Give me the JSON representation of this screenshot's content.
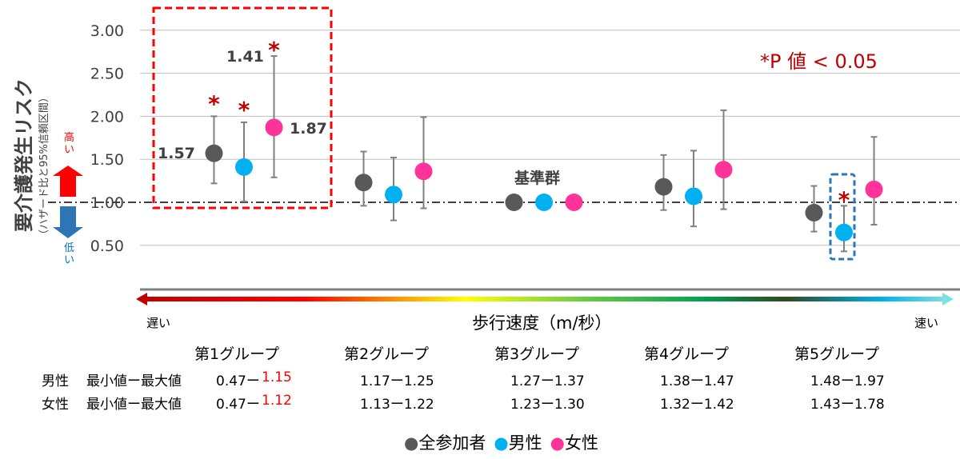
{
  "chart_data": {
    "type": "scatter",
    "ylabel": "要介護発生リスク",
    "ylabel_sub": "（ハザード比と95%信頼区間）",
    "xlabel": "歩行速度（m/秒）",
    "ylim": [
      0.3,
      3.1
    ],
    "yticks": [
      "3.00",
      "2.50",
      "2.00",
      "1.50",
      "1.00",
      "0.50"
    ],
    "ytick_values": [
      3.0,
      2.5,
      2.0,
      1.5,
      1.0,
      0.5
    ],
    "high_label": "高い",
    "low_label": "低い",
    "slow_label": "遅い",
    "fast_label": "速い",
    "reference_label": "基準群",
    "pvalue_note": "*P 値 < 0.05",
    "categories": [
      "第1グループ",
      "第2グループ",
      "第3グループ",
      "第4グループ",
      "第5グループ"
    ],
    "series": [
      {
        "name": "全参加者",
        "color": "#595959",
        "values": [
          1.57,
          1.23,
          1.0,
          1.18,
          0.88
        ],
        "lower": [
          1.22,
          0.96,
          1.0,
          0.91,
          0.66
        ],
        "upper": [
          2.0,
          1.59,
          1.0,
          1.55,
          1.19
        ],
        "significant": [
          true,
          false,
          false,
          false,
          false
        ]
      },
      {
        "name": "男性",
        "color": "#00b0f0",
        "values": [
          1.41,
          1.09,
          1.0,
          1.07,
          0.65
        ],
        "lower": [
          1.01,
          0.79,
          1.0,
          0.72,
          0.43
        ],
        "upper": [
          1.93,
          1.52,
          1.0,
          1.6,
          0.96
        ],
        "significant": [
          true,
          false,
          false,
          false,
          true
        ]
      },
      {
        "name": "女性",
        "color": "#ff3399",
        "values": [
          1.87,
          1.36,
          1.0,
          1.38,
          1.15
        ],
        "lower": [
          1.29,
          0.93,
          1.0,
          0.92,
          0.74
        ],
        "upper": [
          2.7,
          1.99,
          1.0,
          2.07,
          1.76
        ],
        "significant": [
          true,
          false,
          false,
          false,
          false
        ]
      }
    ],
    "data_labels": [
      "1.57",
      "1.41",
      "1.87"
    ],
    "legend": [
      "全参加者",
      "男性",
      "女性"
    ],
    "legend_placement": "bottom"
  },
  "table": {
    "rows": [
      {
        "label": "男性",
        "sub": "最小値ー最大値",
        "values": [
          [
            "0.47ー",
            "1.15"
          ],
          [
            "1.17ー1.25",
            ""
          ],
          [
            "1.27ー1.37",
            ""
          ],
          [
            "1.38ー1.47",
            ""
          ],
          [
            "1.48ー1.97",
            ""
          ]
        ]
      },
      {
        "label": "女性",
        "sub": "最小値ー最大値",
        "values": [
          [
            "0.47ー",
            "1.12"
          ],
          [
            "1.13ー1.22",
            ""
          ],
          [
            "1.23ー1.30",
            ""
          ],
          [
            "1.32ー1.42",
            ""
          ],
          [
            "1.43ー1.78",
            ""
          ]
        ]
      }
    ]
  }
}
